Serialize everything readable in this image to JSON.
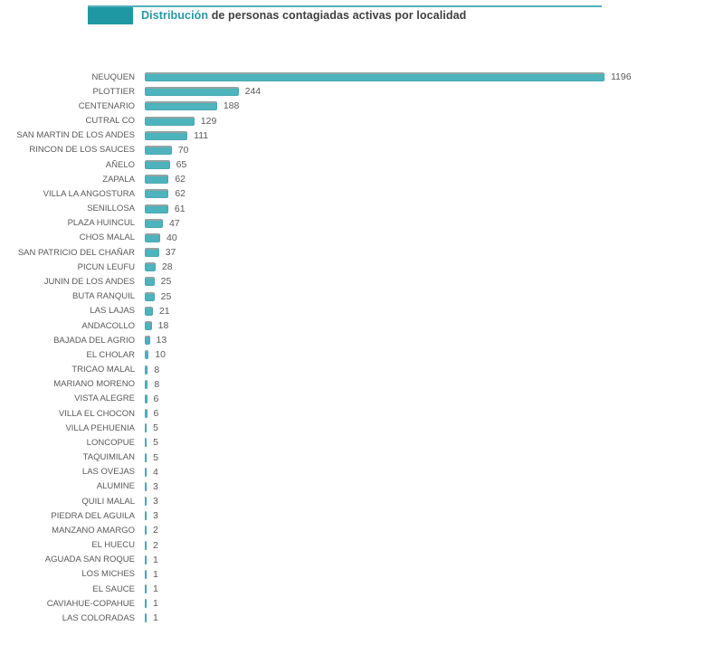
{
  "header": {
    "title_highlight": "Distribución",
    "title_rest": " de personas contagiadas activas por localidad"
  },
  "colors": {
    "accent": "#1e99a3",
    "title_highlight": "#2399a6",
    "text_dark": "#3f3f3f",
    "label": "#595959",
    "bar_fill": "#4db3bd",
    "bar_border": "#49a8b2",
    "bar_top_edge": "#92a4a3",
    "header_rule": "#54aeba"
  },
  "chart_data": {
    "type": "bar",
    "orientation": "horizontal",
    "title": "Distribución de personas contagiadas activas por localidad",
    "xlabel": "",
    "ylabel": "",
    "xlim": [
      0,
      1196
    ],
    "grid": false,
    "legend": false,
    "value_labels": true,
    "categories": [
      "NEUQUEN",
      "PLOTTIER",
      "CENTENARIO",
      "CUTRAL CO",
      "SAN MARTIN DE LOS ANDES",
      "RINCON DE LOS SAUCES",
      "AÑELO",
      "ZAPALA",
      "VILLA LA ANGOSTURA",
      "SENILLOSA",
      "PLAZA HUINCUL",
      "CHOS MALAL",
      "SAN PATRICIO DEL CHAÑAR",
      "PICUN LEUFU",
      "JUNIN DE LOS ANDES",
      "BUTA RANQUIL",
      "LAS LAJAS",
      "ANDACOLLO",
      "BAJADA DEL AGRIO",
      "EL CHOLAR",
      "TRICAO MALAL",
      "MARIANO MORENO",
      "VISTA ALEGRE",
      "VILLA EL CHOCON",
      "VILLA PEHUENIA",
      "LONCOPUE",
      "TAQUIMILAN",
      "LAS OVEJAS",
      "ALUMINE",
      "QUILI MALAL",
      "PIEDRA DEL AGUILA",
      "MANZANO AMARGO",
      "EL HUECU",
      "AGUADA SAN ROQUE",
      "LOS MICHES",
      "EL SAUCE",
      "CAVIAHUE-COPAHUE",
      "LAS COLORADAS"
    ],
    "values": [
      1196,
      244,
      188,
      129,
      111,
      70,
      65,
      62,
      62,
      61,
      47,
      40,
      37,
      28,
      25,
      25,
      21,
      18,
      13,
      10,
      8,
      8,
      6,
      6,
      5,
      5,
      5,
      4,
      3,
      3,
      3,
      2,
      2,
      1,
      1,
      1,
      1,
      1
    ]
  }
}
